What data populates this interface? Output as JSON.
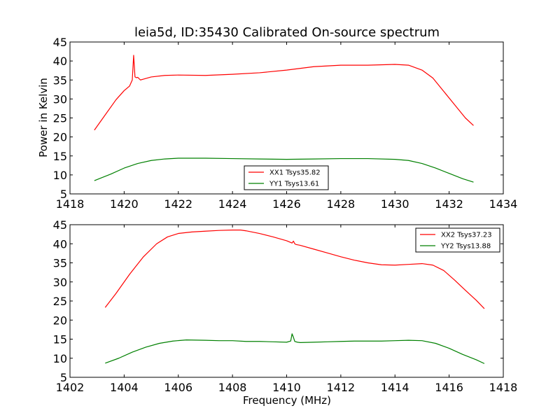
{
  "figure": {
    "title": "leia5d, ID:35430 Calibrated On-source spectrum",
    "ylabel": "Power in Kelvin",
    "xlabel": "Frequency (MHz)"
  },
  "chart_data": [
    {
      "type": "line",
      "xlabel": "",
      "ylabel": "Power in Kelvin",
      "xlim": [
        1418,
        1434
      ],
      "ylim": [
        5,
        45
      ],
      "xticks": [
        1418,
        1420,
        1422,
        1424,
        1426,
        1428,
        1430,
        1432,
        1434
      ],
      "yticks": [
        5,
        10,
        15,
        20,
        25,
        30,
        35,
        40,
        45
      ],
      "grid": false,
      "legend_position": "lower-center",
      "series": [
        {
          "name": "XX1 Tsys35.82",
          "color": "#ff0000",
          "x": [
            1418.9,
            1419.3,
            1419.7,
            1420.0,
            1420.2,
            1420.3,
            1420.35,
            1420.4,
            1420.45,
            1420.5,
            1420.6,
            1420.7,
            1421.0,
            1421.5,
            1422.0,
            1423.0,
            1424.0,
            1425.0,
            1426.0,
            1427.0,
            1428.0,
            1429.0,
            1430.0,
            1430.5,
            1431.0,
            1431.4,
            1431.8,
            1432.2,
            1432.6,
            1432.9
          ],
          "y": [
            21.8,
            25.8,
            29.8,
            32.2,
            33.4,
            35.0,
            41.5,
            35.8,
            35.6,
            35.7,
            35.0,
            35.2,
            35.8,
            36.2,
            36.3,
            36.2,
            36.5,
            36.9,
            37.6,
            38.5,
            38.9,
            38.9,
            39.1,
            38.9,
            37.6,
            35.5,
            32.0,
            28.5,
            25.0,
            23.0
          ]
        },
        {
          "name": "YY1 Tsys13.61",
          "color": "#008000",
          "x": [
            1418.9,
            1419.5,
            1420.0,
            1420.5,
            1421.0,
            1421.5,
            1422.0,
            1423.0,
            1424.0,
            1425.0,
            1426.0,
            1427.0,
            1428.0,
            1429.0,
            1430.0,
            1430.5,
            1431.0,
            1431.5,
            1432.0,
            1432.5,
            1432.9
          ],
          "y": [
            8.5,
            10.2,
            11.8,
            13.0,
            13.8,
            14.2,
            14.4,
            14.4,
            14.3,
            14.2,
            14.1,
            14.2,
            14.3,
            14.3,
            14.1,
            13.8,
            13.0,
            11.8,
            10.4,
            9.0,
            8.1
          ]
        }
      ]
    },
    {
      "type": "line",
      "xlabel": "Frequency (MHz)",
      "ylabel": "",
      "xlim": [
        1402,
        1418
      ],
      "ylim": [
        5,
        45
      ],
      "xticks": [
        1402,
        1404,
        1406,
        1408,
        1410,
        1412,
        1414,
        1416,
        1418
      ],
      "yticks": [
        5,
        10,
        15,
        20,
        25,
        30,
        35,
        40,
        45
      ],
      "grid": false,
      "legend_position": "top-right",
      "series": [
        {
          "name": "XX2 Tsys37.23",
          "color": "#ff0000",
          "x": [
            1403.3,
            1403.7,
            1404.2,
            1404.7,
            1405.2,
            1405.6,
            1406.0,
            1406.5,
            1407.0,
            1407.5,
            1408.0,
            1408.3,
            1408.5,
            1409.0,
            1409.5,
            1410.0,
            1410.2,
            1410.25,
            1410.3,
            1410.35,
            1410.5,
            1411.0,
            1411.5,
            1412.0,
            1412.5,
            1413.0,
            1413.5,
            1414.0,
            1414.5,
            1415.0,
            1415.4,
            1415.8,
            1416.2,
            1416.6,
            1417.0,
            1417.3
          ],
          "y": [
            23.3,
            27.0,
            32.0,
            36.5,
            40.0,
            41.8,
            42.7,
            43.1,
            43.3,
            43.5,
            43.6,
            43.6,
            43.4,
            42.7,
            41.8,
            40.8,
            40.2,
            40.7,
            40.0,
            39.8,
            39.6,
            38.6,
            37.6,
            36.6,
            35.7,
            35.0,
            34.5,
            34.4,
            34.6,
            34.8,
            34.4,
            33.0,
            30.5,
            27.8,
            25.2,
            23.0
          ]
        },
        {
          "name": "YY2 Tsys13.88",
          "color": "#008000",
          "x": [
            1403.3,
            1403.8,
            1404.3,
            1404.8,
            1405.3,
            1405.8,
            1406.3,
            1407.0,
            1407.5,
            1408.0,
            1408.5,
            1409.0,
            1409.5,
            1410.0,
            1410.15,
            1410.2,
            1410.25,
            1410.3,
            1410.4,
            1410.5,
            1411.0,
            1411.5,
            1412.0,
            1412.5,
            1413.0,
            1413.5,
            1414.0,
            1414.5,
            1415.0,
            1415.5,
            1416.0,
            1416.5,
            1417.0,
            1417.3
          ],
          "y": [
            8.7,
            10.0,
            11.6,
            12.9,
            13.9,
            14.5,
            14.8,
            14.7,
            14.6,
            14.6,
            14.4,
            14.4,
            14.3,
            14.2,
            14.5,
            16.4,
            15.5,
            14.4,
            14.2,
            14.1,
            14.2,
            14.3,
            14.4,
            14.5,
            14.5,
            14.5,
            14.6,
            14.7,
            14.6,
            13.9,
            12.6,
            11.0,
            9.6,
            8.6
          ]
        }
      ]
    }
  ]
}
